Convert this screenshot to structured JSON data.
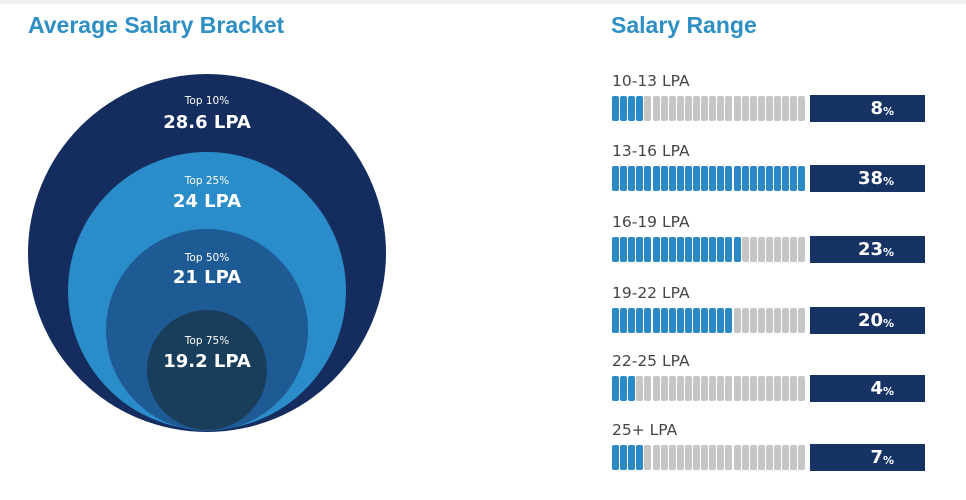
{
  "chart_data": [
    {
      "type": "nested-circles",
      "title": "Average Salary Bracket",
      "brackets": [
        {
          "label": "Top 10%",
          "value_text": "28.6 LPA",
          "value": 28.6,
          "color": "#142c5e"
        },
        {
          "label": "Top 25%",
          "value_text": "24 LPA",
          "value": 24,
          "color": "#2a8cc9"
        },
        {
          "label": "Top 50%",
          "value_text": "21 LPA",
          "value": 21,
          "color": "#1e5b95"
        },
        {
          "label": "Top 75%",
          "value_text": "19.2 LPA",
          "value": 19.2,
          "color": "#183e5b"
        }
      ]
    },
    {
      "type": "bar",
      "title": "Salary Range",
      "categories": [
        "10-13 LPA",
        "13-16 LPA",
        "16-19 LPA",
        "19-22 LPA",
        "22-25 LPA",
        "25+ LPA"
      ],
      "values": [
        8,
        38,
        23,
        20,
        4,
        7
      ],
      "segments_on": [
        4,
        24,
        16,
        15,
        3,
        4
      ],
      "segments_total": 24,
      "percent_sign": "%",
      "colors": {
        "on": "#2b89c6",
        "off": "#c6c6c6",
        "box": "#163363"
      }
    }
  ]
}
